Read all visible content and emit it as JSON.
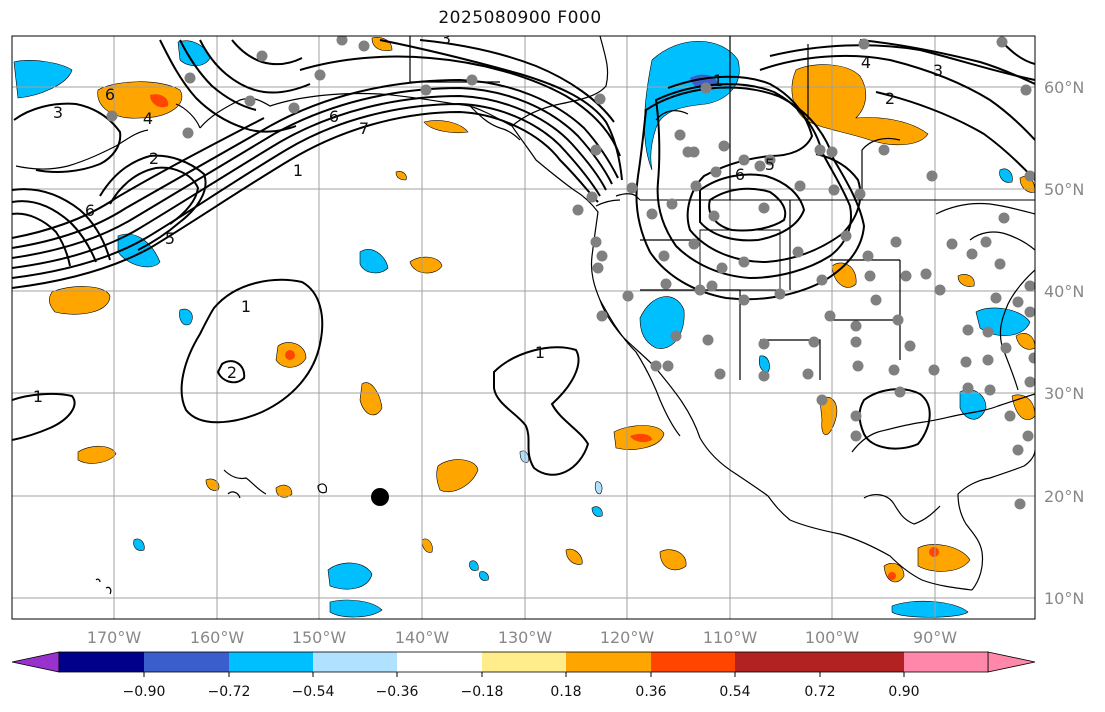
{
  "title": "2025080900 F000",
  "map": {
    "lat_labels": [
      "60°N",
      "50°N",
      "40°N",
      "30°N",
      "20°N",
      "10°N"
    ],
    "lon_labels": [
      "170°W",
      "160°W",
      "150°W",
      "140°W",
      "130°W",
      "120°W",
      "110°W",
      "100°W",
      "90°W"
    ],
    "contour_labels": [
      "1",
      "1",
      "1",
      "1",
      "2",
      "2",
      "3",
      "3",
      "4",
      "5",
      "6",
      "6",
      "6",
      "7",
      "1",
      "2",
      "3",
      "4",
      "5",
      "6"
    ],
    "colors": {
      "background": "#ffffff",
      "gridlines": "#a0a0a0",
      "coastline": "#000000",
      "contour": "#000000",
      "station_marker": "#808080",
      "center_marker": "#000000"
    }
  },
  "colorbar": {
    "tick_labels": [
      "−0.90",
      "−0.72",
      "−0.54",
      "−0.36",
      "−0.18",
      "0.18",
      "0.36",
      "0.54",
      "0.72",
      "0.90"
    ],
    "colors": [
      "#9932cc",
      "#00008b",
      "#3a5fcd",
      "#00bfff",
      "#b0e2ff",
      "#ffffff",
      "#ffec8b",
      "#ffa500",
      "#ff4500",
      "#b22222",
      "#ff88aa"
    ]
  }
}
